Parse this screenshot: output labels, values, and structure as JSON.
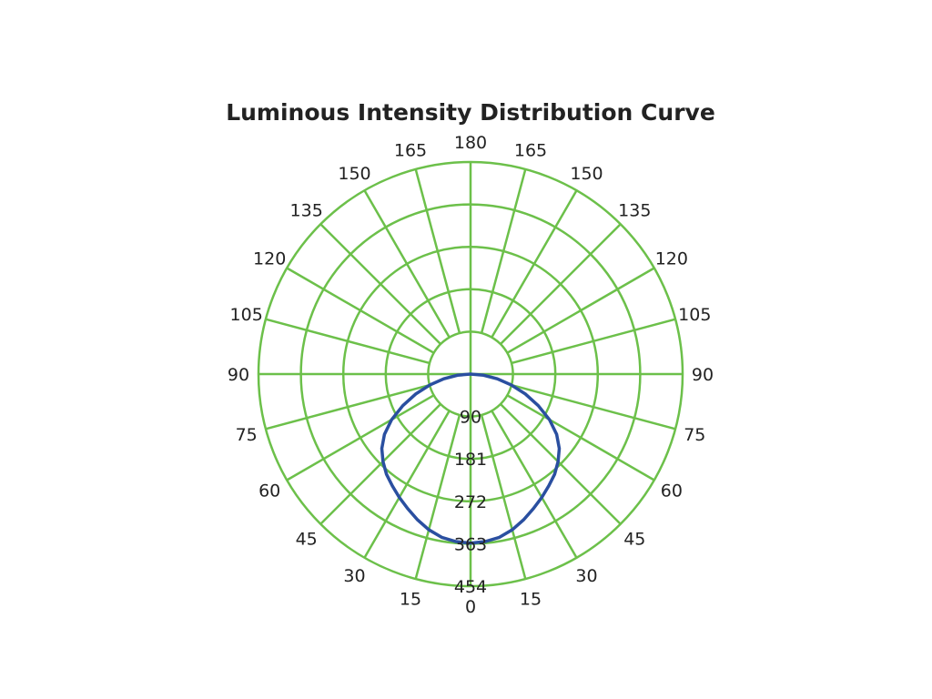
{
  "chart_data": {
    "type": "polar",
    "title": "Luminous Intensity Distribution Curve",
    "angle_tick_labels_left": [
      "0",
      "15",
      "30",
      "45",
      "60",
      "75",
      "90",
      "105",
      "120",
      "135",
      "150",
      "165",
      "180"
    ],
    "angle_tick_labels_right": [
      "15",
      "30",
      "45",
      "60",
      "75",
      "90",
      "105",
      "120",
      "135",
      "150",
      "165"
    ],
    "radial_tick_labels": [
      "90",
      "181",
      "272",
      "363",
      "454"
    ],
    "radial_max": 454,
    "grid": true,
    "colors": {
      "grid": "#6cc04a",
      "curve": "#2a4fa0",
      "text": "#222222"
    },
    "series": [
      {
        "angles_deg": [
          0,
          5,
          10,
          15,
          20,
          25,
          30,
          35,
          40,
          45,
          50,
          55,
          60,
          65,
          70,
          75,
          80,
          85,
          90
        ],
        "values": [
          362,
          360,
          355,
          345,
          332,
          318,
          305,
          292,
          280,
          265,
          248,
          225,
          195,
          160,
          125,
          90,
          58,
          28,
          0
        ]
      }
    ]
  }
}
